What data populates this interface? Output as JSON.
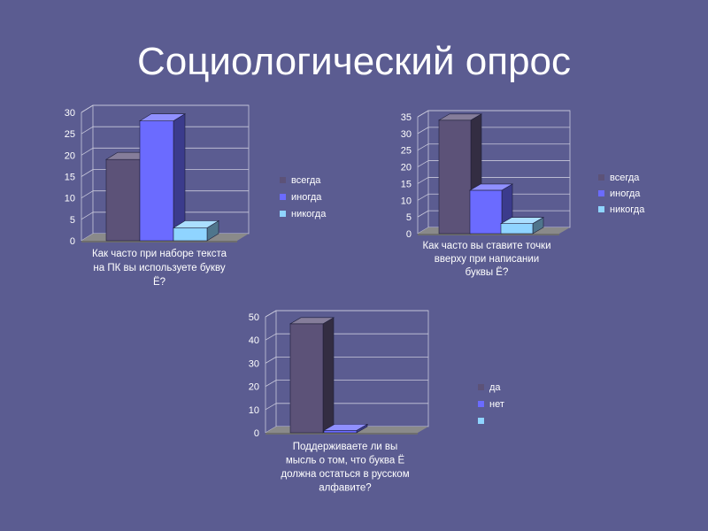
{
  "slide": {
    "title": "Социологический опрос"
  },
  "palette": {
    "grid": "#c9c9dc",
    "floor": "#8a8a8a",
    "floor_side": "#6e6e6e",
    "wall": "#5b5c91"
  },
  "chart_data": [
    {
      "type": "bar",
      "title": "Как часто при наборе текста на ПК вы используете букву Ё?",
      "categories": [
        "всегда",
        "иногда",
        "никогда"
      ],
      "values": [
        19,
        28,
        3
      ],
      "colors": [
        "#5c5278",
        "#6b6bff",
        "#8fd4ff"
      ],
      "ylim": [
        0,
        30
      ],
      "yticks": [
        0,
        5,
        10,
        15,
        20,
        25,
        30
      ],
      "legend": [
        "всегда",
        "иногда",
        "никогда"
      ],
      "caption_lines": [
        "Как часто при наборе текста",
        "на ПК вы используете букву",
        "Ё?"
      ]
    },
    {
      "type": "bar",
      "title": "Как часто вы ставите точки вверху при написании буквы Ё?",
      "categories": [
        "всегда",
        "иногда",
        "никогда"
      ],
      "values": [
        34,
        13,
        3
      ],
      "colors": [
        "#5c5278",
        "#6b6bff",
        "#8fd4ff"
      ],
      "ylim": [
        0,
        35
      ],
      "yticks": [
        0,
        5,
        10,
        15,
        20,
        25,
        30,
        35
      ],
      "legend": [
        "всегда",
        "иногда",
        "никогда"
      ],
      "caption_lines": [
        "Как часто вы ставите точки",
        "вверху при написании",
        "буквы Ё?"
      ]
    },
    {
      "type": "bar",
      "title": "Поддерживаете ли вы мысль о том, что буква Ё должна остаться в русском алфавите?",
      "categories": [
        "да",
        "нет",
        ""
      ],
      "values": [
        47,
        1,
        0
      ],
      "colors": [
        "#5c5278",
        "#6b6bff",
        "#8fd4ff"
      ],
      "ylim": [
        0,
        50
      ],
      "yticks": [
        0,
        10,
        20,
        30,
        40,
        50
      ],
      "legend": [
        "да",
        "нет",
        ""
      ],
      "caption_lines": [
        "Поддерживаете ли вы",
        "мысль о том, что буква Ё",
        "должна остаться в русском",
        "алфавите?"
      ]
    }
  ]
}
